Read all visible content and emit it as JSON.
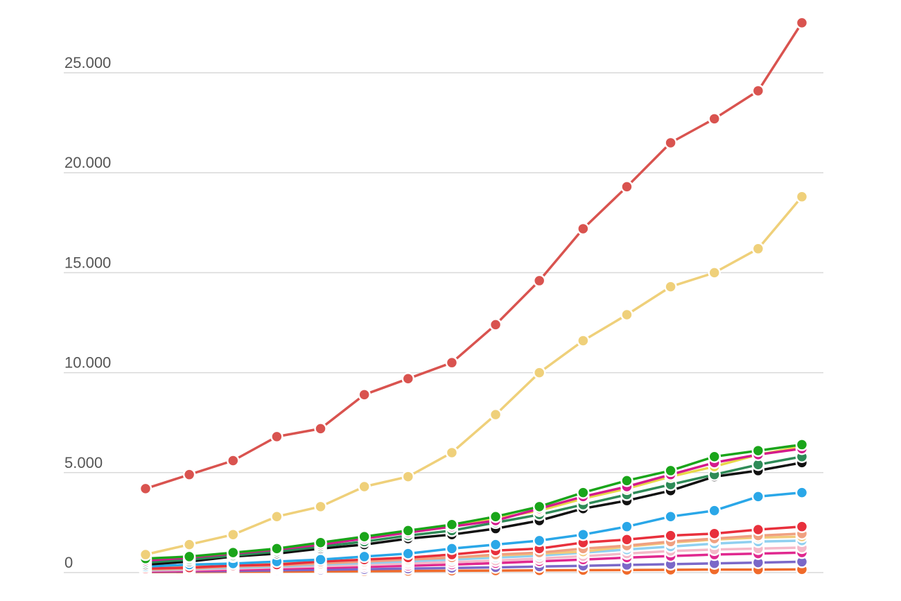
{
  "chart_data": {
    "type": "line",
    "title": "",
    "xlabel": "",
    "ylabel": "",
    "ylim": [
      0,
      28000
    ],
    "y_ticks": [
      {
        "value": 0,
        "label": "0"
      },
      {
        "value": 5000,
        "label": "5.000"
      },
      {
        "value": 10000,
        "label": "10.000"
      },
      {
        "value": 15000,
        "label": "15.000"
      },
      {
        "value": 20000,
        "label": "20.000"
      },
      {
        "value": 25000,
        "label": "25.000"
      }
    ],
    "grid": true,
    "legend": "none",
    "x": [
      1,
      2,
      3,
      4,
      5,
      6,
      7,
      8,
      9,
      10,
      11,
      12,
      13,
      14,
      15,
      16
    ],
    "series": [
      {
        "color": "#d9534f",
        "values": [
          4200,
          4900,
          5600,
          6800,
          7200,
          8900,
          9700,
          10500,
          12400,
          14600,
          17200,
          19300,
          21500,
          22700,
          24100,
          27500
        ]
      },
      {
        "color": "#efd07a",
        "values": [
          900,
          1400,
          1900,
          2800,
          3300,
          4300,
          4800,
          6000,
          7900,
          10000,
          11600,
          12900,
          14300,
          15000,
          16200,
          18800
        ]
      },
      {
        "color": "#1aa51a",
        "values": [
          700,
          800,
          1000,
          1200,
          1500,
          1800,
          2100,
          2400,
          2800,
          3300,
          4000,
          4600,
          5100,
          5800,
          6100,
          6400
        ]
      },
      {
        "color": "#d41a8c",
        "values": [
          600,
          750,
          950,
          1150,
          1400,
          1700,
          2000,
          2300,
          2600,
          3200,
          3800,
          4300,
          4900,
          5500,
          5900,
          6200
        ]
      },
      {
        "color": "#e8d84a",
        "values": [
          650,
          780,
          980,
          1180,
          1450,
          1750,
          2000,
          2300,
          2700,
          3100,
          3700,
          4200,
          4800,
          5300,
          5900,
          6300
        ]
      },
      {
        "color": "#2e8b57",
        "values": [
          500,
          650,
          850,
          1050,
          1300,
          1550,
          1850,
          2100,
          2500,
          2900,
          3400,
          3900,
          4400,
          4900,
          5400,
          5800
        ]
      },
      {
        "color": "#111111",
        "values": [
          400,
          550,
          800,
          950,
          1200,
          1400,
          1700,
          1900,
          2200,
          2600,
          3200,
          3600,
          4100,
          4800,
          5100,
          5500
        ]
      },
      {
        "color": "#2aa7e8",
        "values": [
          300,
          400,
          450,
          550,
          650,
          800,
          950,
          1200,
          1400,
          1600,
          1900,
          2300,
          2800,
          3100,
          3800,
          4000
        ]
      },
      {
        "color": "#e8303c",
        "values": [
          200,
          250,
          350,
          400,
          550,
          650,
          750,
          900,
          1100,
          1200,
          1500,
          1650,
          1850,
          1950,
          2150,
          2300
        ]
      },
      {
        "color": "#f0a080",
        "values": [
          150,
          200,
          300,
          350,
          450,
          550,
          650,
          750,
          900,
          1000,
          1200,
          1350,
          1550,
          1700,
          1850,
          1950
        ]
      },
      {
        "color": "#f2c97a",
        "values": [
          350,
          300,
          400,
          500,
          550,
          600,
          700,
          750,
          850,
          950,
          1050,
          1300,
          1500,
          1650,
          1750,
          1800
        ]
      },
      {
        "color": "#8fd0f0",
        "values": [
          120,
          180,
          250,
          300,
          400,
          480,
          560,
          650,
          750,
          850,
          1000,
          1150,
          1300,
          1450,
          1550,
          1600
        ]
      },
      {
        "color": "#f4b8c8",
        "values": [
          100,
          140,
          200,
          260,
          320,
          380,
          450,
          520,
          600,
          700,
          820,
          950,
          1080,
          1150,
          1200,
          1250
        ]
      },
      {
        "color": "#e0288f",
        "values": [
          60,
          90,
          140,
          190,
          240,
          290,
          340,
          400,
          470,
          560,
          650,
          750,
          830,
          900,
          950,
          1000
        ]
      },
      {
        "color": "#7b68c8",
        "values": [
          40,
          60,
          80,
          110,
          140,
          170,
          200,
          230,
          260,
          300,
          340,
          380,
          420,
          460,
          500,
          540
        ]
      },
      {
        "color": "#f06a2a",
        "values": [
          20,
          30,
          40,
          50,
          60,
          70,
          80,
          90,
          100,
          110,
          120,
          130,
          140,
          150,
          150,
          160
        ]
      }
    ]
  }
}
